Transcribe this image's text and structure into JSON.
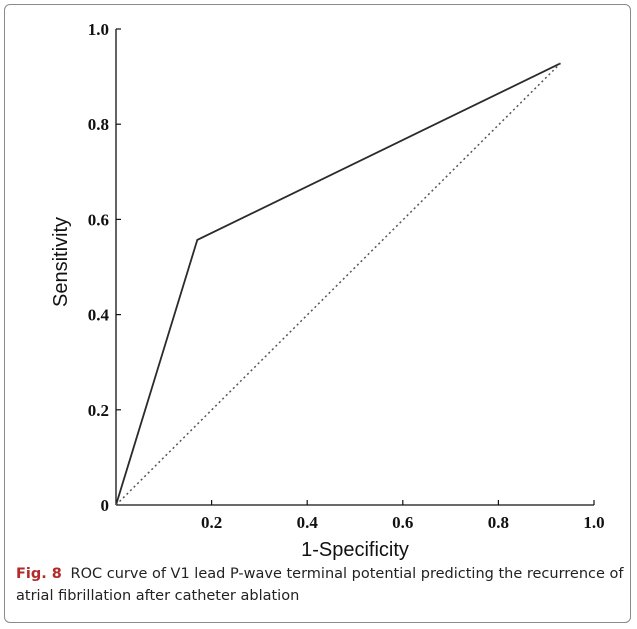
{
  "chart_data": {
    "type": "line",
    "xlabel": "1-Specificity",
    "ylabel": "Sensitivity",
    "xlim": [
      0,
      1.0
    ],
    "ylim": [
      0,
      1.0
    ],
    "x_ticks": [
      0.2,
      0.4,
      0.6,
      0.8,
      1.0
    ],
    "y_ticks": [
      0,
      0.2,
      0.4,
      0.6,
      0.8,
      1.0
    ],
    "x_tick_labels": [
      "0.2",
      "0.4",
      "0.6",
      "0.8",
      "1.0"
    ],
    "y_tick_labels": [
      "0",
      "0.2",
      "0.4",
      "0.6",
      "0.8",
      "1.0"
    ],
    "grid": false,
    "series": [
      {
        "style": "solid",
        "color": "#2b2b2b",
        "x": [
          0,
          0.17,
          0.93
        ],
        "y": [
          0,
          0.557,
          0.928
        ]
      },
      {
        "style": "dotted",
        "color": "#555555",
        "x": [
          0,
          0.93
        ],
        "y": [
          0,
          0.928
        ]
      }
    ]
  },
  "caption": {
    "label": "Fig. 8",
    "text": "ROC curve of V1 lead P-wave terminal potential predicting the recurrence of atrial fibrillation after catheter ablation"
  }
}
